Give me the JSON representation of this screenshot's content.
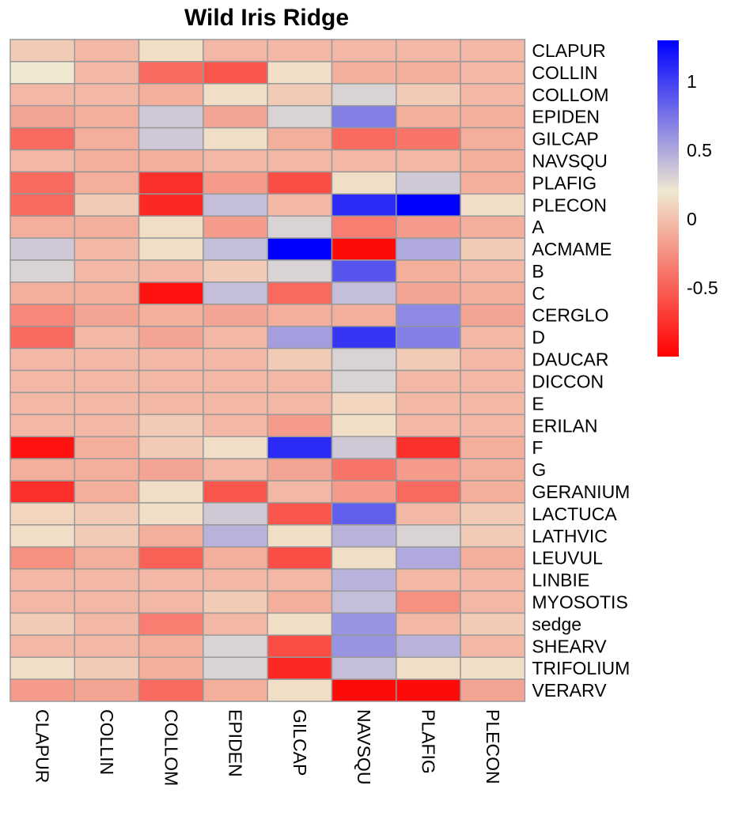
{
  "chart_data": {
    "type": "heatmap",
    "title": "Wild Iris Ridge",
    "columns": [
      "CLAPUR",
      "COLLIN",
      "COLLOM",
      "EPIDEN",
      "GILCAP",
      "NAVSQU",
      "PLAFIG",
      "PLECON"
    ],
    "rows": [
      "CLAPUR",
      "COLLIN",
      "COLLOM",
      "EPIDEN",
      "GILCAP",
      "NAVSQU",
      "PLAFIG",
      "PLECON",
      "A",
      "ACMAME",
      "B",
      "C",
      "CERGLO",
      "D",
      "DAUCAR",
      "DICCON",
      "E",
      "ERILAN",
      "F",
      "G",
      "GERANIUM",
      "LACTUCA",
      "LATHVIC",
      "LEUVUL",
      "LINBIE",
      "MYOSOTIS",
      "sedge",
      "SHEARV",
      "TRIFOLIUM",
      "VERARV"
    ],
    "values": [
      [
        0.05,
        -0.05,
        0.15,
        -0.05,
        -0.05,
        -0.05,
        -0.05,
        -0.05
      ],
      [
        0.2,
        -0.05,
        -0.45,
        -0.55,
        0.15,
        -0.1,
        -0.1,
        -0.05
      ],
      [
        -0.05,
        -0.05,
        -0.1,
        0.15,
        0.05,
        0.3,
        0.05,
        -0.05
      ],
      [
        -0.15,
        -0.1,
        0.35,
        -0.15,
        0.3,
        0.7,
        -0.1,
        -0.1
      ],
      [
        -0.45,
        -0.1,
        0.35,
        0.15,
        -0.1,
        -0.45,
        -0.4,
        -0.1
      ],
      [
        -0.05,
        -0.1,
        -0.1,
        -0.05,
        -0.05,
        -0.05,
        -0.05,
        -0.1
      ],
      [
        -0.45,
        -0.1,
        -0.75,
        -0.2,
        -0.6,
        0.15,
        0.35,
        -0.1
      ],
      [
        -0.45,
        0.05,
        -0.8,
        0.4,
        -0.05,
        1.1,
        1.3,
        0.15
      ],
      [
        -0.1,
        -0.1,
        0.15,
        -0.2,
        0.3,
        -0.35,
        -0.2,
        -0.1
      ],
      [
        0.35,
        -0.05,
        0.15,
        0.4,
        1.3,
        -0.95,
        0.5,
        0.05
      ],
      [
        0.3,
        -0.05,
        -0.05,
        0.05,
        0.3,
        0.9,
        -0.1,
        -0.05
      ],
      [
        -0.1,
        -0.1,
        -0.9,
        0.4,
        -0.45,
        0.4,
        -0.15,
        -0.1
      ],
      [
        -0.3,
        -0.15,
        -0.1,
        -0.15,
        -0.1,
        -0.1,
        0.65,
        -0.15
      ],
      [
        -0.45,
        -0.05,
        -0.15,
        -0.05,
        0.55,
        1.05,
        0.7,
        -0.05
      ],
      [
        -0.05,
        -0.05,
        -0.05,
        -0.05,
        0.05,
        0.3,
        0.05,
        -0.05
      ],
      [
        -0.05,
        -0.05,
        -0.05,
        -0.05,
        -0.05,
        0.3,
        -0.05,
        -0.05
      ],
      [
        -0.05,
        -0.05,
        -0.05,
        -0.05,
        -0.05,
        0.1,
        -0.05,
        -0.05
      ],
      [
        -0.05,
        -0.05,
        0.05,
        -0.05,
        -0.2,
        0.15,
        -0.05,
        -0.05
      ],
      [
        -0.9,
        -0.1,
        0.05,
        0.15,
        1.1,
        0.35,
        -0.75,
        -0.1
      ],
      [
        -0.1,
        -0.1,
        -0.15,
        -0.05,
        -0.15,
        -0.4,
        -0.2,
        -0.1
      ],
      [
        -0.75,
        -0.1,
        0.15,
        -0.55,
        -0.05,
        -0.2,
        -0.45,
        -0.1
      ],
      [
        0.1,
        0.05,
        0.15,
        0.35,
        -0.55,
        0.85,
        -0.05,
        0.05
      ],
      [
        0.15,
        0.05,
        -0.1,
        0.45,
        0.15,
        0.45,
        0.3,
        0.05
      ],
      [
        -0.25,
        -0.1,
        -0.5,
        -0.1,
        -0.6,
        0.15,
        0.5,
        -0.1
      ],
      [
        -0.05,
        -0.05,
        -0.05,
        -0.05,
        -0.05,
        0.45,
        -0.05,
        -0.05
      ],
      [
        -0.05,
        -0.05,
        -0.05,
        0.05,
        -0.1,
        0.4,
        -0.25,
        -0.05
      ],
      [
        0.05,
        -0.05,
        -0.35,
        -0.05,
        0.15,
        0.6,
        -0.05,
        0.05
      ],
      [
        -0.05,
        -0.05,
        -0.1,
        0.3,
        -0.6,
        0.6,
        0.45,
        -0.05
      ],
      [
        0.15,
        0.05,
        -0.1,
        0.3,
        -0.8,
        0.4,
        0.15,
        0.15
      ],
      [
        -0.2,
        -0.15,
        -0.45,
        -0.1,
        0.15,
        -0.95,
        -0.95,
        -0.15
      ]
    ],
    "legend": {
      "type": "colorbar",
      "range": [
        -1.0,
        1.3
      ],
      "ticks": [
        1,
        0.5,
        0,
        -0.5
      ],
      "tick_labels": [
        "1",
        "0.5",
        "0",
        "-0.5"
      ],
      "colors": {
        "low": "#ff0000",
        "mid": "#f0e8d0",
        "high": "#0000ff"
      },
      "midpoint": 0.2
    },
    "cell_border": "#999999"
  }
}
